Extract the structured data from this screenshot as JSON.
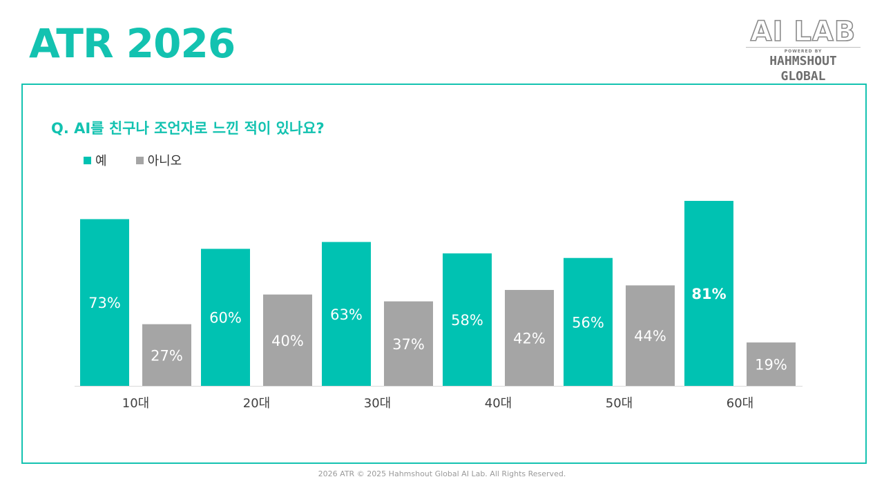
{
  "header": {
    "title": "ATR 2026"
  },
  "logo": {
    "main": "AI LAB",
    "sub": "POWERED BY",
    "brand": "HAHMSHOUT GLOBAL"
  },
  "footer": {
    "text": "2026 ATR © 2025 Hahmshout Global AI Lab. All Rights Reserved."
  },
  "colors": {
    "accent": "#13c2b0",
    "yes": "#00c2b2",
    "no": "#a5a5a5",
    "axis": "#d9d9d9"
  },
  "chart_data": {
    "type": "bar",
    "title": "Q. AI를 친구나 조언자로 느낀 적이 있나요?",
    "categories": [
      "10대",
      "20대",
      "30대",
      "40대",
      "50대",
      "60대"
    ],
    "series": [
      {
        "name": "예",
        "values": [
          73,
          60,
          63,
          58,
          56,
          81
        ],
        "labels": [
          "73%",
          "60%",
          "63%",
          "58%",
          "56%",
          "81%"
        ]
      },
      {
        "name": "아니오",
        "values": [
          27,
          40,
          37,
          42,
          44,
          19
        ],
        "labels": [
          "27%",
          "40%",
          "37%",
          "42%",
          "44%",
          "19%"
        ]
      }
    ],
    "highlight": {
      "series": 0,
      "index": 5
    },
    "ylim": [
      0,
      81
    ],
    "xlabel": "",
    "ylabel": "",
    "legend": "top-left",
    "grid": false
  }
}
